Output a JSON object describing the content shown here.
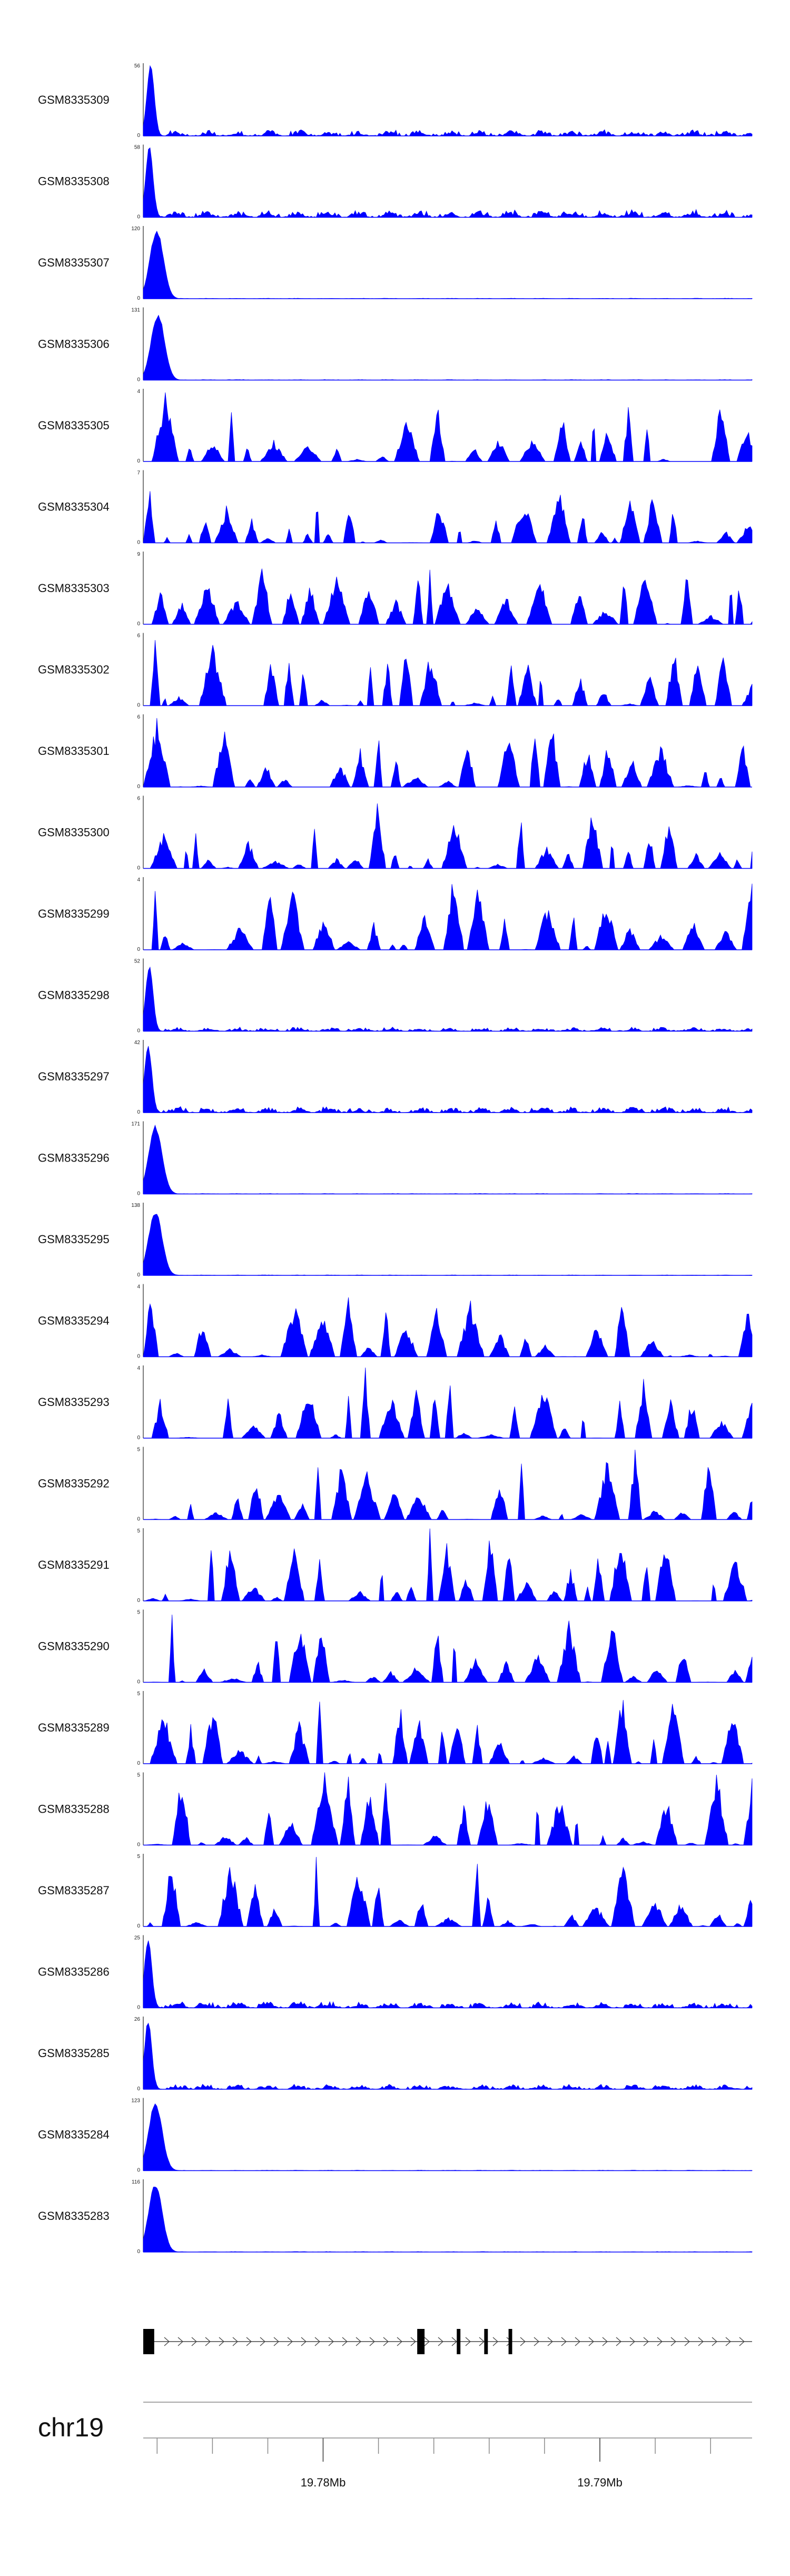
{
  "chart_data": {
    "type": "area",
    "chromosome": "chr19",
    "xaxis": {
      "range_mb": [
        19.7735,
        19.7955
      ],
      "tick_labels": [
        "19.78Mb",
        "19.79Mb"
      ],
      "tick_values_mb": [
        19.78,
        19.79
      ]
    },
    "colors": {
      "signal": "#0000ff",
      "gene": "#000000",
      "axis": "#222222"
    },
    "tracks": [
      {
        "name": "GSM8335309",
        "ymax": 56,
        "ymin": 0,
        "shape": "peak",
        "peak_height": 1.0,
        "peak_center": 0.012,
        "peak_width": 0.006,
        "bg_level": 0.12
      },
      {
        "name": "GSM8335308",
        "ymax": 58,
        "ymin": 0,
        "shape": "peak",
        "peak_height": 1.0,
        "peak_center": 0.01,
        "peak_width": 0.006,
        "bg_level": 0.15
      },
      {
        "name": "GSM8335307",
        "ymax": 120,
        "ymin": 0,
        "shape": "peak",
        "peak_height": 0.95,
        "peak_center": 0.022,
        "peak_width": 0.011,
        "bg_level": 0.01
      },
      {
        "name": "GSM8335306",
        "ymax": 131,
        "ymin": 0,
        "shape": "peak",
        "peak_height": 0.92,
        "peak_center": 0.024,
        "peak_width": 0.011,
        "bg_level": 0.01
      },
      {
        "name": "GSM8335305",
        "ymax": 4,
        "ymin": 0,
        "shape": "noise",
        "bg_level": 0.85
      },
      {
        "name": "GSM8335304",
        "ymax": 7,
        "ymin": 0,
        "shape": "noise",
        "bg_level": 0.75
      },
      {
        "name": "GSM8335303",
        "ymax": 9,
        "ymin": 0,
        "shape": "noise",
        "bg_level": 0.72
      },
      {
        "name": "GSM8335302",
        "ymax": 6,
        "ymin": 0,
        "shape": "noise",
        "bg_level": 0.8
      },
      {
        "name": "GSM8335301",
        "ymax": 6,
        "ymin": 0,
        "shape": "noise",
        "bg_level": 0.82
      },
      {
        "name": "GSM8335300",
        "ymax": 6,
        "ymin": 0,
        "shape": "noise",
        "bg_level": 0.78
      },
      {
        "name": "GSM8335299",
        "ymax": 4,
        "ymin": 0,
        "shape": "noise",
        "bg_level": 0.92
      },
      {
        "name": "GSM8335298",
        "ymax": 52,
        "ymin": 0,
        "shape": "peak",
        "peak_height": 0.92,
        "peak_center": 0.01,
        "peak_width": 0.006,
        "bg_level": 0.08
      },
      {
        "name": "GSM8335297",
        "ymax": 42,
        "ymin": 0,
        "shape": "peak",
        "peak_height": 0.95,
        "peak_center": 0.008,
        "peak_width": 0.006,
        "bg_level": 0.12
      },
      {
        "name": "GSM8335296",
        "ymax": 171,
        "ymin": 0,
        "shape": "peak",
        "peak_height": 0.95,
        "peak_center": 0.02,
        "peak_width": 0.011,
        "bg_level": 0.01
      },
      {
        "name": "GSM8335295",
        "ymax": 138,
        "ymin": 0,
        "shape": "peak",
        "peak_height": 0.9,
        "peak_center": 0.02,
        "peak_width": 0.011,
        "bg_level": 0.01
      },
      {
        "name": "GSM8335294",
        "ymax": 4,
        "ymin": 0,
        "shape": "noise",
        "bg_level": 0.78
      },
      {
        "name": "GSM8335293",
        "ymax": 4,
        "ymin": 0,
        "shape": "noise",
        "bg_level": 0.9
      },
      {
        "name": "GSM8335292",
        "ymax": 5,
        "ymin": 0,
        "shape": "noise",
        "bg_level": 0.88
      },
      {
        "name": "GSM8335291",
        "ymax": 5,
        "ymin": 0,
        "shape": "noise",
        "bg_level": 0.85
      },
      {
        "name": "GSM8335290",
        "ymax": 5,
        "ymin": 0,
        "shape": "noise",
        "bg_level": 0.78
      },
      {
        "name": "GSM8335289",
        "ymax": 5,
        "ymin": 0,
        "shape": "noise",
        "bg_level": 0.88
      },
      {
        "name": "GSM8335288",
        "ymax": 5,
        "ymin": 0,
        "shape": "noise",
        "bg_level": 0.9
      },
      {
        "name": "GSM8335287",
        "ymax": 5,
        "ymin": 0,
        "shape": "noise",
        "bg_level": 0.92
      },
      {
        "name": "GSM8335286",
        "ymax": 25,
        "ymin": 0,
        "shape": "peak",
        "peak_height": 0.95,
        "peak_center": 0.008,
        "peak_width": 0.006,
        "bg_level": 0.12
      },
      {
        "name": "GSM8335285",
        "ymax": 26,
        "ymin": 0,
        "shape": "peak",
        "peak_height": 0.95,
        "peak_center": 0.008,
        "peak_width": 0.006,
        "bg_level": 0.1
      },
      {
        "name": "GSM8335284",
        "ymax": 123,
        "ymin": 0,
        "shape": "peak",
        "peak_height": 0.95,
        "peak_center": 0.02,
        "peak_width": 0.011,
        "bg_level": 0.01
      },
      {
        "name": "GSM8335283",
        "ymax": 116,
        "ymin": 0,
        "shape": "peak",
        "peak_height": 0.95,
        "peak_center": 0.02,
        "peak_width": 0.011,
        "bg_level": 0.01
      }
    ],
    "gene_exons": [
      {
        "start": 0.0,
        "end": 0.018
      },
      {
        "start": 0.45,
        "end": 0.462
      },
      {
        "start": 0.515,
        "end": 0.521
      },
      {
        "start": 0.56,
        "end": 0.566
      },
      {
        "start": 0.6,
        "end": 0.606
      }
    ]
  }
}
